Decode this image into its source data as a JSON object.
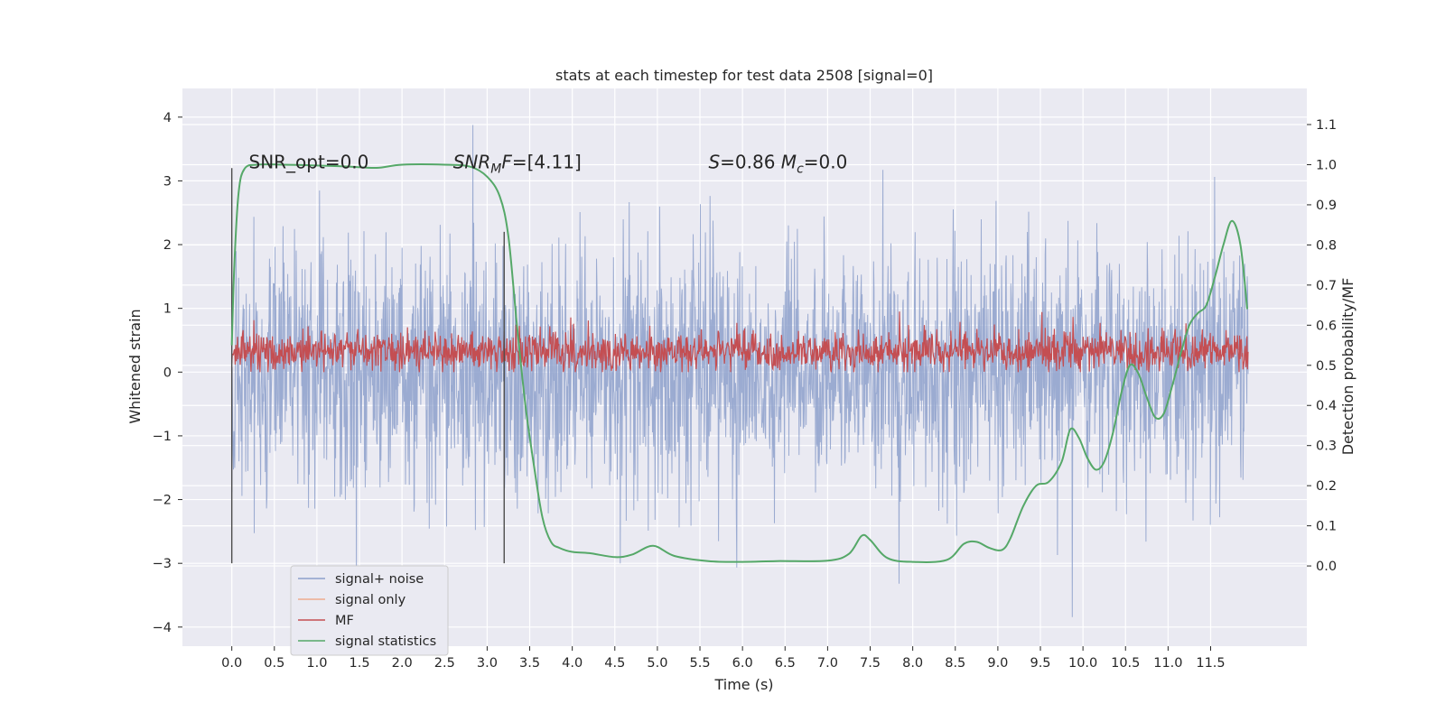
{
  "colors": {
    "plot_background": "#eaeaf2",
    "grid": "#ffffff",
    "noise": "#8da0cb",
    "signal_only": "#eeab8e",
    "mf": "#c44e52",
    "stats": "#55a868",
    "vline": "#4c4c4c",
    "text": "#262626"
  },
  "chart_data": {
    "type": "line",
    "title": "stats at each timestep for test data 2508 [signal=0]",
    "xlabel": "Time (s)",
    "ylabel": "Whitened strain",
    "ylabel_right": "Detection probability/MF",
    "xlim": [
      -0.58,
      12.63
    ],
    "ylim": [
      -4.3,
      4.45
    ],
    "ylim_right": [
      -0.2,
      1.19
    ],
    "grid": true,
    "legend_placement": "lower left",
    "x_ticks": [
      "0.0",
      "0.5",
      "1.0",
      "1.5",
      "2.0",
      "2.5",
      "3.0",
      "3.5",
      "4.0",
      "4.5",
      "5.0",
      "5.5",
      "6.0",
      "6.5",
      "7.0",
      "7.5",
      "8.0",
      "8.5",
      "9.0",
      "9.5",
      "10.0",
      "10.5",
      "11.0",
      "11.5"
    ],
    "y_ticks_left": [
      "4",
      "3",
      "2",
      "1",
      "0",
      "−1",
      "−2",
      "−3",
      "−4"
    ],
    "y_ticks_right": [
      "1.1",
      "1.0",
      "0.9",
      "0.8",
      "0.7",
      "0.6",
      "0.5",
      "0.4",
      "0.3",
      "0.2",
      "0.1",
      "0.0"
    ],
    "annotations": [
      {
        "id": "snr_opt",
        "text": "SNR_opt=0.0",
        "x": 0.2,
        "y": 3.2
      },
      {
        "id": "snr_mf",
        "text": "SNR_MF=[4.11]",
        "x": 2.6,
        "y": 3.2
      },
      {
        "id": "s_mc",
        "text": "S=0.86   M_c=0.0",
        "x": 5.6,
        "y": 3.2
      }
    ],
    "vertical_lines": [
      {
        "x": 0.0,
        "y0": -3.0,
        "y1": 3.2
      },
      {
        "x": 3.2,
        "y0": -3.0,
        "y1": 2.2
      }
    ],
    "series": [
      {
        "name": "signal+ noise",
        "description": "whitened strain noise, approx. zero mean",
        "x_range": [
          0.0,
          11.94
        ],
        "typical_band": [
          -1.8,
          1.8
        ],
        "extremes": [
          -3.9,
          4.1
        ]
      },
      {
        "name": "signal only",
        "values": []
      },
      {
        "name": "MF",
        "description": "matched filter output, approx. 0.0 to 0.9",
        "x_range": [
          0.0,
          11.94
        ],
        "typical_band": [
          0.0,
          0.75
        ]
      },
      {
        "name": "signal statistics",
        "axis": "right",
        "x": [
          0.0,
          0.03,
          0.08,
          0.15,
          0.3,
          0.6,
          1.0,
          1.4,
          1.7,
          2.0,
          2.5,
          2.8,
          3.0,
          3.15,
          3.25,
          3.35,
          3.45,
          3.55,
          3.65,
          3.75,
          3.85,
          4.0,
          4.2,
          4.5,
          4.7,
          4.95,
          5.2,
          5.6,
          6.0,
          6.4,
          7.0,
          7.25,
          7.4,
          7.5,
          7.7,
          8.0,
          8.4,
          8.6,
          8.75,
          8.9,
          9.05,
          9.15,
          9.3,
          9.45,
          9.6,
          9.75,
          9.85,
          9.95,
          10.05,
          10.15,
          10.25,
          10.35,
          10.45,
          10.55,
          10.65,
          10.75,
          10.85,
          10.95,
          11.05,
          11.15,
          11.25,
          11.35,
          11.45,
          11.55,
          11.65,
          11.75,
          11.85,
          11.93
        ],
        "values": [
          0.55,
          0.75,
          0.93,
          0.99,
          1.0,
          1.0,
          0.998,
          0.995,
          0.992,
          1.0,
          1.0,
          0.995,
          0.97,
          0.92,
          0.82,
          0.6,
          0.4,
          0.25,
          0.12,
          0.06,
          0.045,
          0.035,
          0.032,
          0.022,
          0.028,
          0.05,
          0.025,
          0.012,
          0.01,
          0.012,
          0.013,
          0.03,
          0.075,
          0.065,
          0.02,
          0.01,
          0.015,
          0.055,
          0.06,
          0.045,
          0.04,
          0.07,
          0.15,
          0.2,
          0.21,
          0.26,
          0.34,
          0.32,
          0.27,
          0.24,
          0.26,
          0.33,
          0.43,
          0.5,
          0.48,
          0.42,
          0.37,
          0.38,
          0.45,
          0.53,
          0.6,
          0.63,
          0.65,
          0.72,
          0.8,
          0.86,
          0.8,
          0.64
        ]
      }
    ]
  }
}
